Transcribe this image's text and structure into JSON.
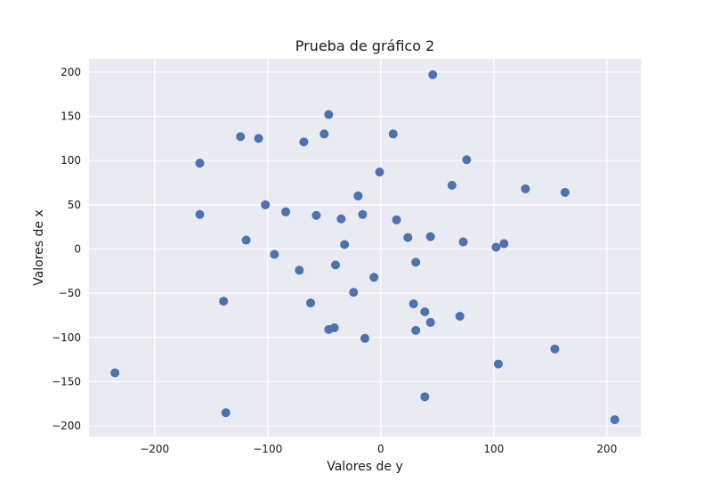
{
  "chart_data": {
    "type": "scatter",
    "title": "Prueba de gráfico 2",
    "xlabel": "Valores de y",
    "ylabel": "Valores de x",
    "xlim": [
      -258,
      230
    ],
    "ylim": [
      -212,
      215
    ],
    "x_ticks": [
      -200,
      -100,
      0,
      100,
      200
    ],
    "y_ticks": [
      -200,
      -150,
      -100,
      -50,
      0,
      50,
      100,
      150,
      200
    ],
    "x_tick_labels": [
      "−200",
      "−100",
      "0",
      "100",
      "200"
    ],
    "y_tick_labels": [
      "−200",
      "−150",
      "−100",
      "−50",
      "0",
      "50",
      "100",
      "150",
      "200"
    ],
    "grid": true,
    "marker_color": "#4c72b0",
    "plot_background": "#eaeaf2",
    "points": [
      {
        "x": 46,
        "y": 197
      },
      {
        "x": -46,
        "y": 152
      },
      {
        "x": -124,
        "y": 127
      },
      {
        "x": -108,
        "y": 125
      },
      {
        "x": -50,
        "y": 130
      },
      {
        "x": 11,
        "y": 130
      },
      {
        "x": -68,
        "y": 121
      },
      {
        "x": -160,
        "y": 97
      },
      {
        "x": 76,
        "y": 101
      },
      {
        "x": -1,
        "y": 87
      },
      {
        "x": 63,
        "y": 72
      },
      {
        "x": 128,
        "y": 68
      },
      {
        "x": 163,
        "y": 64
      },
      {
        "x": -20,
        "y": 60
      },
      {
        "x": -102,
        "y": 50
      },
      {
        "x": -84,
        "y": 42
      },
      {
        "x": -160,
        "y": 39
      },
      {
        "x": -57,
        "y": 38
      },
      {
        "x": -16,
        "y": 39
      },
      {
        "x": -35,
        "y": 34
      },
      {
        "x": 14,
        "y": 33
      },
      {
        "x": 24,
        "y": 13
      },
      {
        "x": 44,
        "y": 14
      },
      {
        "x": -119,
        "y": 10
      },
      {
        "x": 73,
        "y": 8
      },
      {
        "x": 109,
        "y": 6
      },
      {
        "x": -32,
        "y": 5
      },
      {
        "x": 102,
        "y": 2
      },
      {
        "x": -94,
        "y": -6
      },
      {
        "x": 31,
        "y": -15
      },
      {
        "x": -40,
        "y": -18
      },
      {
        "x": -72,
        "y": -24
      },
      {
        "x": -6,
        "y": -32
      },
      {
        "x": -24,
        "y": -49
      },
      {
        "x": -139,
        "y": -59
      },
      {
        "x": -62,
        "y": -61
      },
      {
        "x": 29,
        "y": -62
      },
      {
        "x": 39,
        "y": -71
      },
      {
        "x": 70,
        "y": -76
      },
      {
        "x": 44,
        "y": -83
      },
      {
        "x": -41,
        "y": -89
      },
      {
        "x": -46,
        "y": -91
      },
      {
        "x": 31,
        "y": -92
      },
      {
        "x": -14,
        "y": -101
      },
      {
        "x": 154,
        "y": -113
      },
      {
        "x": 104,
        "y": -130
      },
      {
        "x": -235,
        "y": -140
      },
      {
        "x": 39,
        "y": -167
      },
      {
        "x": -137,
        "y": -185
      },
      {
        "x": 207,
        "y": -193
      }
    ]
  }
}
